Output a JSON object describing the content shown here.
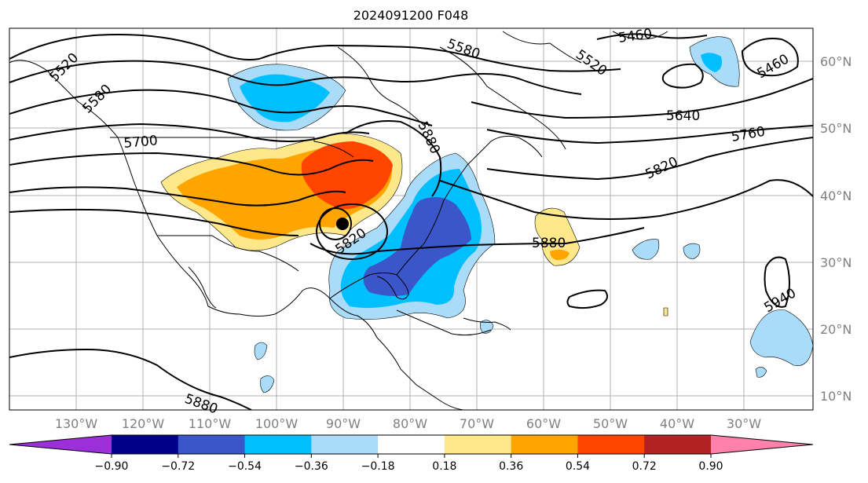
{
  "title": "2024091200 F048",
  "axes": {
    "lon_labels": [
      "130°W",
      "120°W",
      "110°W",
      "100°W",
      "90°W",
      "80°W",
      "70°W",
      "60°W",
      "50°W",
      "40°W",
      "30°W"
    ],
    "lat_labels": [
      "60°N",
      "50°N",
      "40°N",
      "30°N",
      "20°N",
      "10°N"
    ]
  },
  "contour_labels": [
    "5520",
    "5580",
    "5460",
    "5520",
    "5460",
    "5580",
    "5640",
    "5700",
    "5880",
    "5760",
    "5820",
    "5880",
    "5820",
    "5940",
    "5880"
  ],
  "colorbar": {
    "ticks": [
      "−0.90",
      "−0.72",
      "−0.54",
      "−0.36",
      "−0.18",
      "0.18",
      "0.36",
      "0.54",
      "0.72",
      "0.90"
    ],
    "colors": [
      "#9b30d9",
      "#00008b",
      "#3a56c8",
      "#00bfff",
      "#aadcfa",
      "#ffffff",
      "#ffe88a",
      "#ffa500",
      "#ff4500",
      "#b22222",
      "#ff80aa"
    ]
  },
  "marker": {
    "label": "storm-center"
  }
}
